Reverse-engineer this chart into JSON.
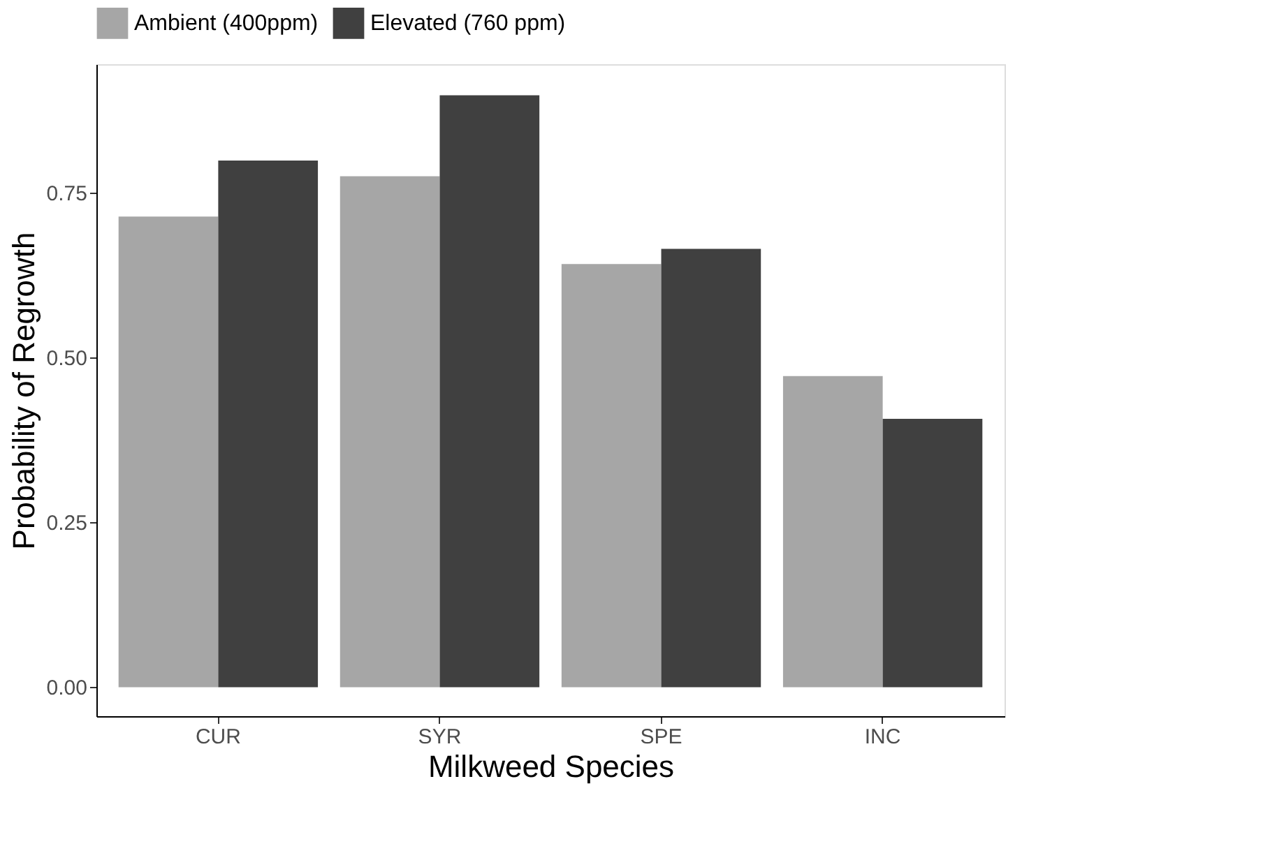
{
  "chart_data": {
    "type": "bar",
    "xlabel": "Milkweed Species",
    "ylabel": "Probability of Regrowth",
    "categories": [
      "CUR",
      "SYR",
      "SPE",
      "INC"
    ],
    "series": [
      {
        "name": "Ambient (400ppm)",
        "color": "#a6a6a6",
        "values": [
          0.714,
          0.775,
          0.642,
          0.472
        ]
      },
      {
        "name": "Elevated (760 ppm)",
        "color": "#404040",
        "values": [
          0.799,
          0.898,
          0.665,
          0.407
        ]
      }
    ],
    "ylim": [
      -0.044,
      0.945
    ],
    "yticks": [
      {
        "value": 0,
        "label": "0.00"
      },
      {
        "value": 0.25,
        "label": "0.25"
      },
      {
        "value": 0.5,
        "label": "0.50"
      },
      {
        "value": 0.75,
        "label": "0.75"
      }
    ],
    "grid": false,
    "legend": "top"
  }
}
